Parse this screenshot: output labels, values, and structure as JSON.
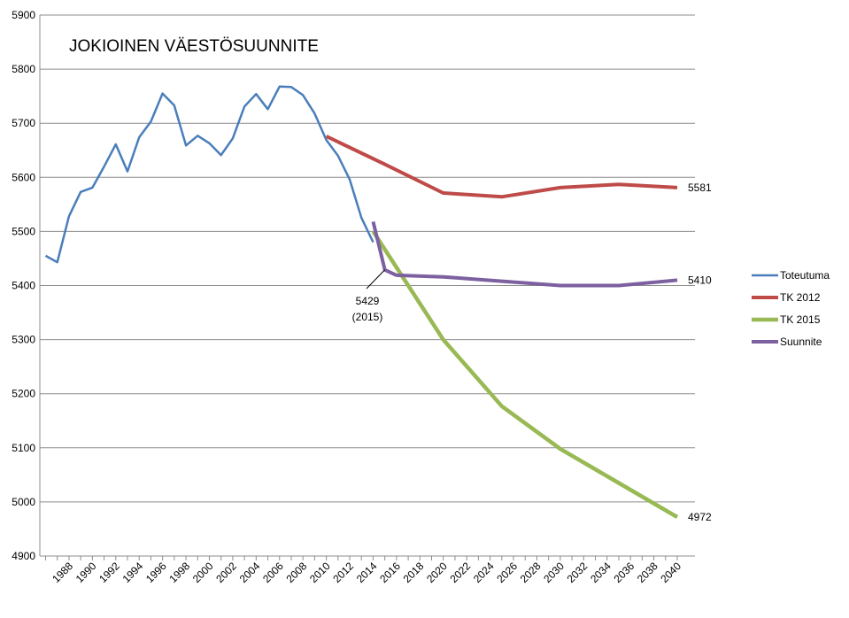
{
  "chart_data": {
    "type": "line",
    "title": "JOKIOINEN VÄESTÖSUUNNITE",
    "xlabel": "",
    "ylabel": "",
    "ylim": [
      4900,
      5900
    ],
    "yticks": [
      4900,
      5000,
      5100,
      5200,
      5300,
      5400,
      5500,
      5600,
      5700,
      5800,
      5900
    ],
    "xlim": [
      1986,
      2040
    ],
    "xtick_labels": [
      "1988",
      "1990",
      "1992",
      "1994",
      "1996",
      "1998",
      "2000",
      "2002",
      "2004",
      "2006",
      "2008",
      "2010",
      "2012",
      "2014",
      "2016",
      "2018",
      "2020",
      "2022",
      "2024",
      "2026",
      "2028",
      "2030",
      "2032",
      "2034",
      "2036",
      "2038",
      "2040"
    ],
    "grid": "horizontal",
    "legend_position": "right",
    "series": [
      {
        "name": "Toteutuma",
        "color": "#4a7ebb",
        "x": [
          1986,
          1987,
          1988,
          1989,
          1990,
          1991,
          1992,
          1993,
          1994,
          1995,
          1996,
          1997,
          1998,
          1999,
          2000,
          2001,
          2002,
          2003,
          2004,
          2005,
          2006,
          2007,
          2008,
          2009,
          2010,
          2011,
          2012,
          2013,
          2014
        ],
        "y": [
          5455,
          5443,
          5528,
          5573,
          5581,
          5620,
          5661,
          5611,
          5674,
          5703,
          5755,
          5733,
          5659,
          5677,
          5663,
          5641,
          5672,
          5731,
          5754,
          5726,
          5768,
          5767,
          5752,
          5718,
          5669,
          5640,
          5596,
          5525,
          5480
        ]
      },
      {
        "name": "TK 2012",
        "color": "#be4b48",
        "x": [
          2010,
          2015,
          2020,
          2025,
          2030,
          2035,
          2040
        ],
        "y": [
          5676,
          5624,
          5571,
          5564,
          5581,
          5587,
          5581
        ]
      },
      {
        "name": "TK 2015",
        "color": "#98b954",
        "x": [
          2014,
          2020,
          2025,
          2030,
          2035,
          2040
        ],
        "y": [
          5500,
          5300,
          5177,
          5098,
          5035,
          4972
        ]
      },
      {
        "name": "Suunnite",
        "color": "#7d60a0",
        "x": [
          2014,
          2015,
          2016,
          2020,
          2025,
          2030,
          2035,
          2040
        ],
        "y": [
          5518,
          5429,
          5419,
          5416,
          5408,
          5400,
          5400,
          5410
        ]
      }
    ],
    "end_labels": [
      "5581",
      "5410",
      "4972"
    ],
    "annotation": {
      "text_line1": "5429",
      "text_line2": "(2015)",
      "x": 2015,
      "y": 5429
    }
  }
}
